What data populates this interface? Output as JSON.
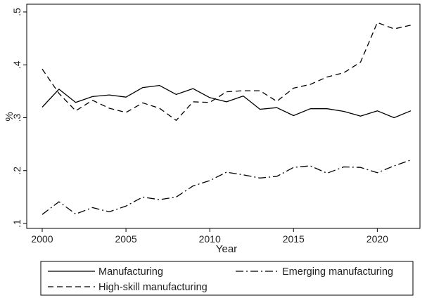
{
  "chart_data": {
    "type": "line",
    "xlabel": "Year",
    "ylabel": "%",
    "xlim": [
      2000,
      2022
    ],
    "ylim": [
      0.1,
      0.5
    ],
    "x_ticks": [
      2000,
      2005,
      2010,
      2015,
      2020
    ],
    "x_tick_labels": [
      "2000",
      "2005",
      "2010",
      "2015",
      "2020"
    ],
    "y_ticks": [
      0.1,
      0.2,
      0.3,
      0.4,
      0.5
    ],
    "y_tick_labels": [
      ".1",
      ".2",
      ".3",
      ".4",
      ".5"
    ],
    "grid": false,
    "legend_position": "bottom",
    "x": [
      2000,
      2001,
      2002,
      2003,
      2004,
      2005,
      2006,
      2007,
      2008,
      2009,
      2010,
      2011,
      2012,
      2013,
      2014,
      2015,
      2016,
      2017,
      2018,
      2019,
      2020,
      2021,
      2022
    ],
    "series": [
      {
        "name": "Manufacturing",
        "style": "solid",
        "color": "#000000",
        "values": [
          0.32,
          0.354,
          0.329,
          0.34,
          0.343,
          0.339,
          0.357,
          0.361,
          0.344,
          0.355,
          0.338,
          0.33,
          0.341,
          0.316,
          0.319,
          0.304,
          0.317,
          0.317,
          0.312,
          0.303,
          0.313,
          0.3,
          0.313
        ]
      },
      {
        "name": "Emerging manufacturing",
        "style": "dashdot",
        "color": "#000000",
        "values": [
          0.117,
          0.141,
          0.118,
          0.13,
          0.122,
          0.133,
          0.15,
          0.145,
          0.15,
          0.171,
          0.181,
          0.197,
          0.192,
          0.186,
          0.189,
          0.206,
          0.209,
          0.195,
          0.207,
          0.206,
          0.196,
          0.209,
          0.22
        ]
      },
      {
        "name": "High-skill manufacturing",
        "style": "dashed",
        "color": "#000000",
        "values": [
          0.392,
          0.346,
          0.313,
          0.333,
          0.318,
          0.31,
          0.328,
          0.318,
          0.295,
          0.33,
          0.329,
          0.349,
          0.351,
          0.351,
          0.331,
          0.356,
          0.363,
          0.377,
          0.385,
          0.405,
          0.48,
          0.468,
          0.475
        ]
      }
    ]
  }
}
